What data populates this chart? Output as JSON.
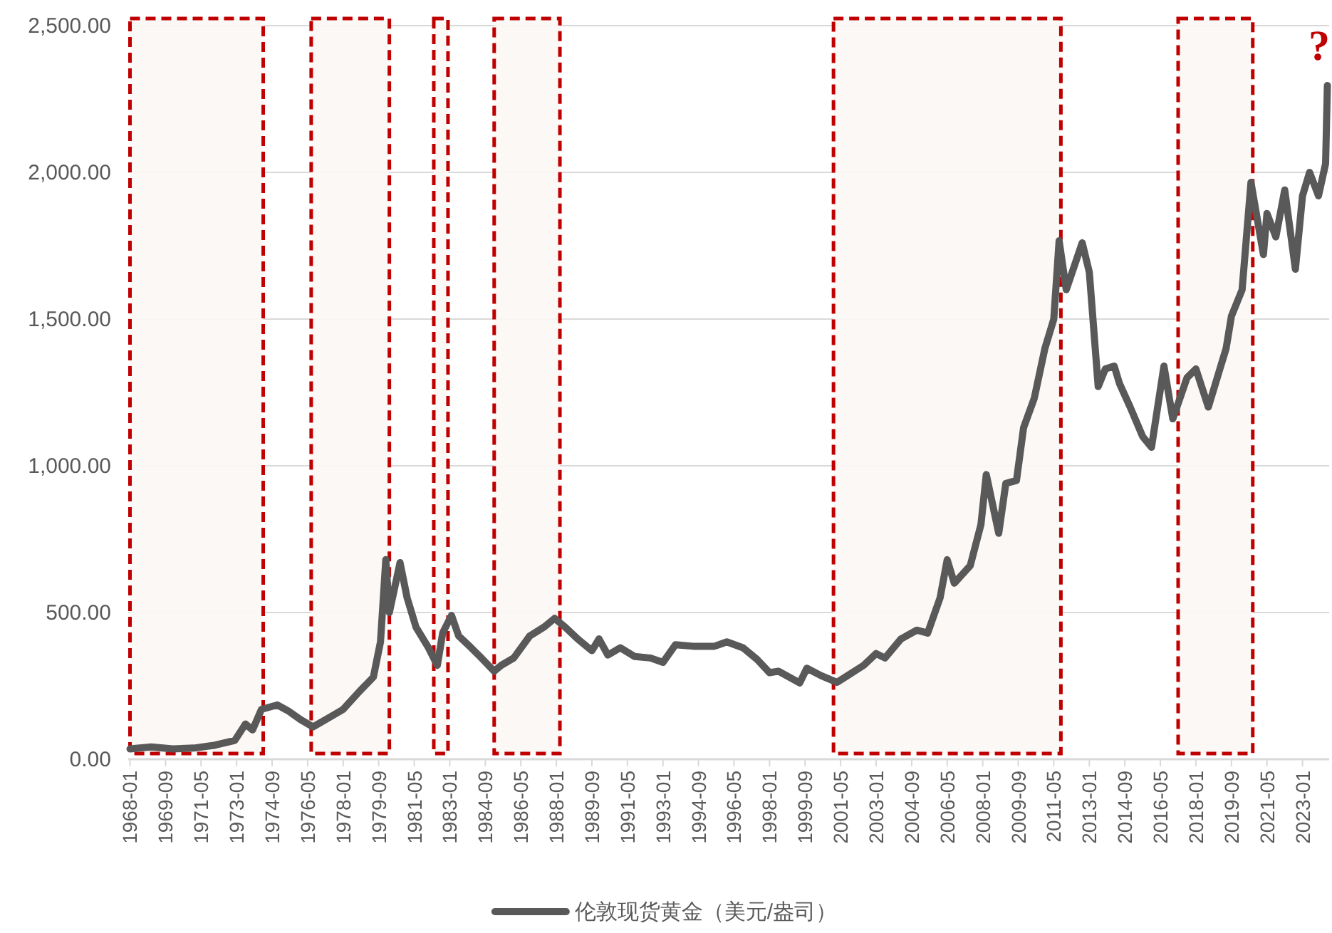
{
  "chart_data": {
    "type": "line",
    "x": [
      "1968-01",
      "1969-01",
      "1970-01",
      "1971-01",
      "1972-01",
      "1972-12",
      "1973-06",
      "1973-10",
      "1974-03",
      "1974-12",
      "1975-06",
      "1976-01",
      "1976-08",
      "1977-06",
      "1978-01",
      "1978-10",
      "1979-06",
      "1979-10",
      "1980-01",
      "1980-03",
      "1980-09",
      "1981-01",
      "1981-06",
      "1982-01",
      "1982-06",
      "1982-09",
      "1983-02",
      "1983-06",
      "1984-01",
      "1984-06",
      "1985-02",
      "1985-06",
      "1986-01",
      "1986-10",
      "1987-06",
      "1987-12",
      "1988-06",
      "1989-01",
      "1989-09",
      "1990-01",
      "1990-06",
      "1991-01",
      "1991-09",
      "1992-06",
      "1993-01",
      "1993-08",
      "1994-06",
      "1995-06",
      "1996-01",
      "1996-10",
      "1997-06",
      "1998-01",
      "1998-06",
      "1999-06",
      "1999-10",
      "2000-06",
      "2001-03",
      "2001-09",
      "2002-06",
      "2003-01",
      "2003-06",
      "2004-03",
      "2004-12",
      "2005-06",
      "2006-01",
      "2006-05",
      "2006-09",
      "2007-06",
      "2007-12",
      "2008-03",
      "2008-10",
      "2009-02",
      "2009-08",
      "2009-12",
      "2010-06",
      "2010-12",
      "2011-05",
      "2011-08",
      "2011-12",
      "2012-09",
      "2013-01",
      "2013-06",
      "2013-10",
      "2014-03",
      "2014-06",
      "2014-12",
      "2015-07",
      "2015-12",
      "2016-07",
      "2016-12",
      "2017-08",
      "2018-01",
      "2018-08",
      "2019-01",
      "2019-06",
      "2019-09",
      "2020-03",
      "2020-08",
      "2020-11",
      "2021-03",
      "2021-05",
      "2021-10",
      "2022-03",
      "2022-09",
      "2023-01",
      "2023-05",
      "2023-10",
      "2024-02",
      "2024-03"
    ],
    "series": [
      {
        "name": "伦敦现货黄金（美元/盎司）",
        "color": "#595959",
        "values": [
          35,
          42,
          35,
          38,
          48,
          64,
          120,
          100,
          170,
          185,
          165,
          135,
          110,
          145,
          170,
          230,
          280,
          400,
          680,
          500,
          670,
          550,
          450,
          380,
          320,
          430,
          490,
          420,
          380,
          350,
          300,
          320,
          345,
          420,
          450,
          480,
          450,
          410,
          370,
          410,
          355,
          380,
          350,
          345,
          330,
          390,
          385,
          385,
          400,
          380,
          340,
          295,
          300,
          260,
          310,
          285,
          262,
          285,
          320,
          360,
          345,
          410,
          440,
          430,
          550,
          680,
          600,
          660,
          800,
          970,
          770,
          940,
          950,
          1130,
          1230,
          1400,
          1500,
          1767,
          1600,
          1760,
          1660,
          1270,
          1330,
          1340,
          1280,
          1200,
          1100,
          1063,
          1340,
          1160,
          1300,
          1330,
          1200,
          1300,
          1400,
          1510,
          1600,
          1966,
          1860,
          1720,
          1860,
          1780,
          1940,
          1670,
          1920,
          2000,
          1920,
          2030,
          2296
        ]
      }
    ],
    "xlim": [
      "1967-12",
      "2024-04"
    ],
    "xticks": [
      "1968-01",
      "1969-09",
      "1971-05",
      "1973-01",
      "1974-09",
      "1976-05",
      "1978-01",
      "1979-09",
      "1981-05",
      "1983-01",
      "1984-09",
      "1986-05",
      "1988-01",
      "1989-09",
      "1991-05",
      "1993-01",
      "1994-09",
      "1996-05",
      "1998-01",
      "1999-09",
      "2001-05",
      "2003-01",
      "2004-09",
      "2006-05",
      "2008-01",
      "2009-09",
      "2011-05",
      "2013-01",
      "2014-09",
      "2016-05",
      "2018-01",
      "2019-09",
      "2021-05",
      "2023-01"
    ],
    "ylim": [
      0,
      2500
    ],
    "yticks": [
      {
        "value": 0,
        "label": "0.00"
      },
      {
        "value": 500,
        "label": "500.00"
      },
      {
        "value": 1000,
        "label": "1,000.00"
      },
      {
        "value": 1500,
        "label": "1,500.00"
      },
      {
        "value": 2000,
        "label": "2,000.00"
      },
      {
        "value": 2500,
        "label": "2,500.00"
      }
    ],
    "grid": "y",
    "legend": "bottom",
    "bands": [
      {
        "axis": "x",
        "from": "1968-01",
        "to": "1974-04",
        "color": "#c00000"
      },
      {
        "axis": "x",
        "from": "1976-07",
        "to": "1980-03",
        "color": "#c00000"
      },
      {
        "axis": "x",
        "from": "1982-04",
        "to": "1982-12",
        "color": "#c00000"
      },
      {
        "axis": "x",
        "from": "1985-02",
        "to": "1988-03",
        "color": "#c00000"
      },
      {
        "axis": "x",
        "from": "2001-01",
        "to": "2011-09",
        "color": "#c00000"
      },
      {
        "axis": "x",
        "from": "2017-03",
        "to": "2020-09",
        "color": "#c00000"
      }
    ],
    "annotations": [
      "?"
    ]
  }
}
